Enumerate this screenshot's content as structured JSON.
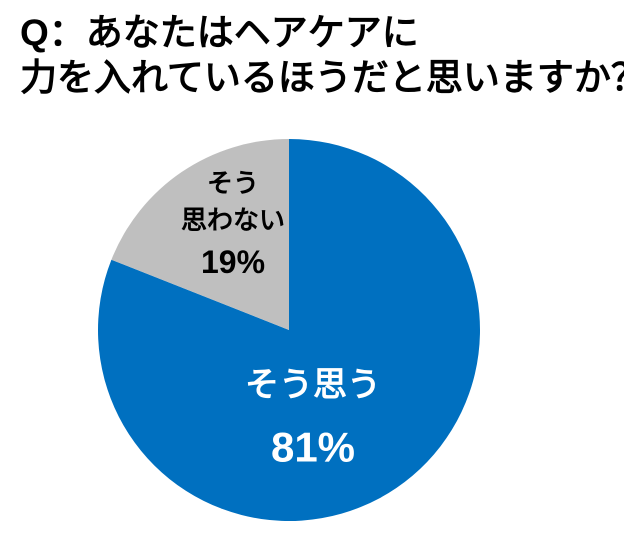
{
  "title": {
    "line1": "Q：あなたはヘアケアに",
    "line2": "力を入れているほうだと思いますか？"
  },
  "chart_data": {
    "type": "pie",
    "question": "Q：あなたはヘアケアに力を入れているほうだと思いますか？",
    "start_angle_deg": 0,
    "direction": "clockwise",
    "legend": "none",
    "labels_inside": true,
    "total": 100,
    "slices": [
      {
        "name": "そう思う",
        "value": 81,
        "percent_label": "81%",
        "display_lines": [
          "そう思う",
          "81%"
        ],
        "color": "#0070C0",
        "label_color": "#FFFFFF"
      },
      {
        "name": "そう思わない",
        "value": 19,
        "percent_label": "19%",
        "display_lines": [
          "そう",
          "思わない",
          "19%"
        ],
        "color": "#BFBFBF",
        "label_color": "#000000"
      }
    ]
  }
}
